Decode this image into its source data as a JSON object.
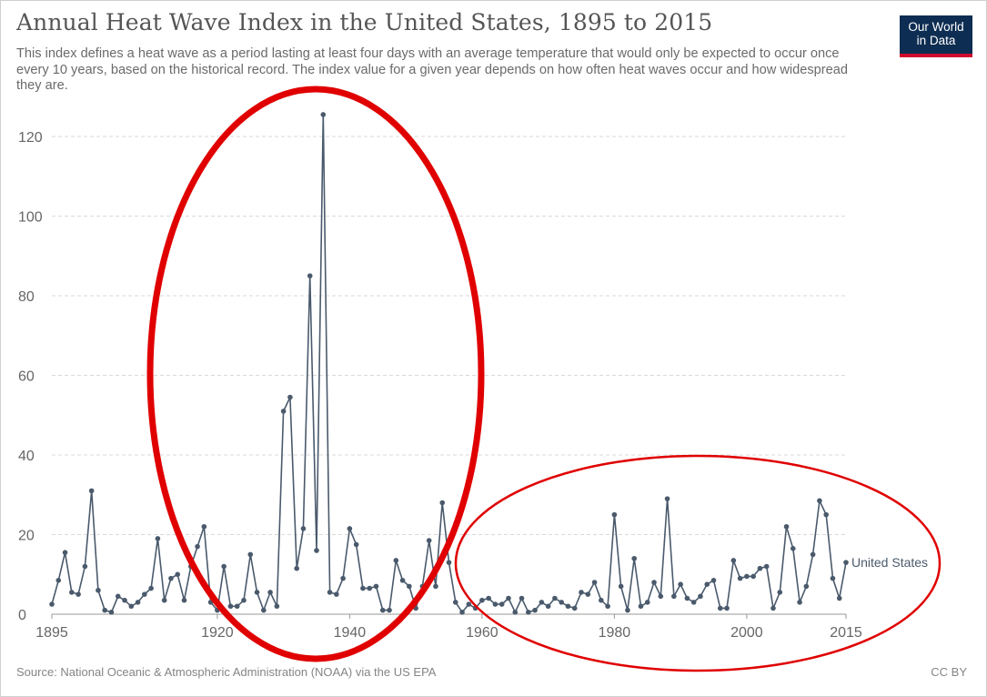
{
  "title": "Annual Heat Wave Index in the United States, 1895 to 2015",
  "subtitle": "This index defines a heat wave as a period lasting at least four days with an average temperature that would only be expected to occur once every 10 years, based on the historical record. The index value for a given year depends on how often heat waves occur and how widespread they are.",
  "logo": {
    "line1": "Our World",
    "line2": "in Data"
  },
  "footer": {
    "source": "Source: National Oceanic & Atmospheric Administration (NOAA) via the US EPA",
    "license": "CC BY"
  },
  "colors": {
    "series": "#4a5a6c",
    "annotation": "#e00000",
    "grid": "#d9d9d9",
    "logo_bg": "#0e2d52",
    "logo_bar": "#cf0a2c"
  },
  "chart_data": {
    "type": "line",
    "title": "Annual Heat Wave Index in the United States, 1895 to 2015",
    "xlabel": "",
    "ylabel": "",
    "xlim": [
      1895,
      2015
    ],
    "ylim": [
      0,
      125
    ],
    "yticks": [
      0,
      20,
      40,
      60,
      80,
      100,
      120
    ],
    "xticks": [
      1895,
      1920,
      1940,
      1960,
      1980,
      2000,
      2015
    ],
    "grid": "horizontal dashed",
    "series": [
      {
        "name": "United States",
        "x": [
          1895,
          1896,
          1897,
          1898,
          1899,
          1900,
          1901,
          1902,
          1903,
          1904,
          1905,
          1906,
          1907,
          1908,
          1909,
          1910,
          1911,
          1912,
          1913,
          1914,
          1915,
          1916,
          1917,
          1918,
          1919,
          1920,
          1921,
          1922,
          1923,
          1924,
          1925,
          1926,
          1927,
          1928,
          1929,
          1930,
          1931,
          1932,
          1933,
          1934,
          1935,
          1936,
          1937,
          1938,
          1939,
          1940,
          1941,
          1942,
          1943,
          1944,
          1945,
          1946,
          1947,
          1948,
          1949,
          1950,
          1951,
          1952,
          1953,
          1954,
          1955,
          1956,
          1957,
          1958,
          1959,
          1960,
          1961,
          1962,
          1963,
          1964,
          1965,
          1966,
          1967,
          1968,
          1969,
          1970,
          1971,
          1972,
          1973,
          1974,
          1975,
          1976,
          1977,
          1978,
          1979,
          1980,
          1981,
          1982,
          1983,
          1984,
          1985,
          1986,
          1987,
          1988,
          1989,
          1990,
          1991,
          1992,
          1993,
          1994,
          1995,
          1996,
          1997,
          1998,
          1999,
          2000,
          2001,
          2002,
          2003,
          2004,
          2005,
          2006,
          2007,
          2008,
          2009,
          2010,
          2011,
          2012,
          2013,
          2014,
          2015
        ],
        "y": [
          2.5,
          8.5,
          15.5,
          5.5,
          5,
          12,
          31,
          6,
          1,
          0.5,
          4.5,
          3.5,
          2,
          3,
          5,
          6.5,
          19,
          3.5,
          9,
          10,
          3.5,
          12,
          17,
          22,
          3,
          1,
          12,
          2,
          2,
          3.5,
          15,
          5.5,
          1,
          5.5,
          2,
          51,
          54.5,
          11.5,
          21.5,
          85,
          16,
          125.5,
          5.5,
          5,
          9,
          21.5,
          17.5,
          6.5,
          6.5,
          7,
          1,
          1,
          13.5,
          8.5,
          7,
          1.5,
          7,
          18.5,
          7,
          28,
          13,
          3,
          0.5,
          2.5,
          1.5,
          3.5,
          4,
          2.5,
          2.5,
          4,
          0.5,
          4,
          0.5,
          1,
          3,
          2,
          4,
          3,
          2,
          1.5,
          5.5,
          5,
          8,
          3.5,
          2,
          25,
          7,
          1,
          14,
          2,
          3,
          8,
          4.5,
          29,
          4.5,
          7.5,
          4,
          3,
          4.5,
          7.5,
          8.5,
          1.5,
          1.5,
          13.5,
          9,
          9.5,
          9.5,
          11.5,
          12,
          1.5,
          5.5,
          22,
          16.5,
          3,
          7,
          15,
          28.5,
          25,
          9,
          4,
          13
        ]
      }
    ],
    "annotations": [
      "red ellipse highlighting 1917-1955 peak period",
      "red ellipse highlighting 1957-2015 period"
    ]
  }
}
